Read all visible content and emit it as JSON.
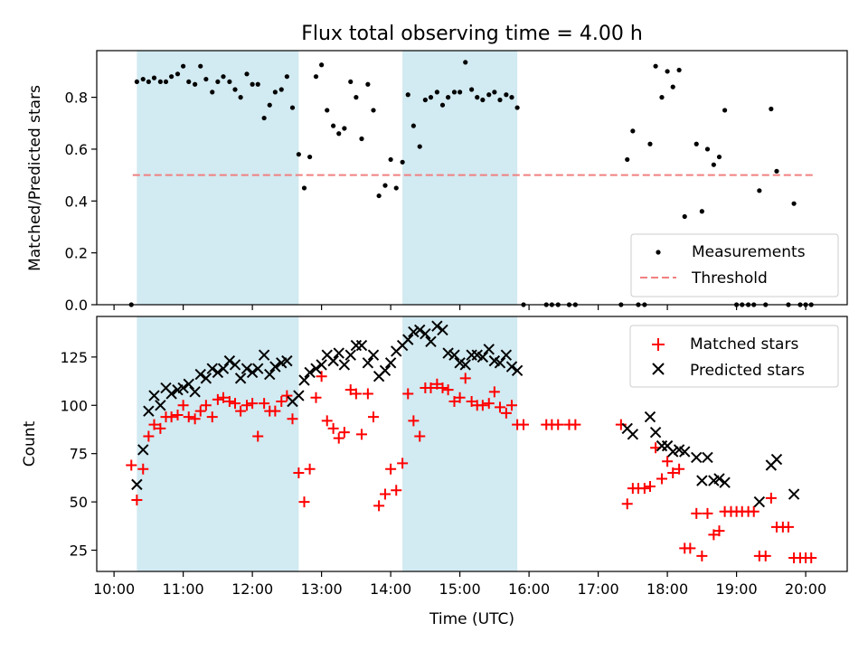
{
  "chart_data": {
    "title": "Flux total observing time = 4.00 h",
    "shared_x": {
      "label": "Time (UTC)",
      "unit": "hours UTC",
      "range": [
        9.75,
        20.6
      ],
      "ticks": [
        10,
        11,
        12,
        13,
        14,
        15,
        16,
        17,
        18,
        19,
        20
      ],
      "tick_labels": [
        "10:00",
        "11:00",
        "12:00",
        "13:00",
        "14:00",
        "15:00",
        "16:00",
        "17:00",
        "18:00",
        "19:00",
        "20:00"
      ]
    },
    "shaded_intervals": [
      [
        10.33,
        12.67
      ],
      [
        14.17,
        15.83
      ]
    ],
    "colors": {
      "shade": "#add8e6",
      "measurements": "#000000",
      "threshold": "#f08080",
      "matched": "#ff0000",
      "predicted": "#000000"
    },
    "panels": [
      {
        "type": "scatter",
        "ylabel": "Matched/Predicted stars",
        "ylim": [
          0,
          0.98
        ],
        "yticks": [
          0.0,
          0.2,
          0.4,
          0.6,
          0.8
        ],
        "ytick_labels": [
          "0.0",
          "0.2",
          "0.4",
          "0.6",
          "0.8"
        ],
        "legend_position": "lower-right",
        "threshold": {
          "name": "Threshold",
          "y": 0.5,
          "x_range": [
            10.27,
            20.1
          ]
        },
        "series": [
          {
            "name": "Measurements",
            "marker": "dot",
            "x": [
              10.25,
              10.33,
              10.42,
              10.5,
              10.58,
              10.67,
              10.75,
              10.83,
              10.92,
              11.0,
              11.08,
              11.17,
              11.25,
              11.33,
              11.42,
              11.5,
              11.58,
              11.67,
              11.75,
              11.83,
              11.92,
              12.0,
              12.08,
              12.17,
              12.25,
              12.33,
              12.42,
              12.5,
              12.58,
              12.67,
              12.75,
              12.83,
              12.92,
              13.0,
              13.08,
              13.17,
              13.25,
              13.33,
              13.42,
              13.5,
              13.58,
              13.67,
              13.75,
              13.83,
              13.92,
              14.0,
              14.08,
              14.17,
              14.25,
              14.33,
              14.42,
              14.5,
              14.58,
              14.67,
              14.75,
              14.83,
              14.92,
              15.0,
              15.08,
              15.17,
              15.25,
              15.33,
              15.42,
              15.5,
              15.58,
              15.67,
              15.75,
              15.83,
              15.92,
              16.25,
              16.33,
              16.42,
              16.58,
              16.67,
              17.33,
              17.42,
              17.5,
              17.58,
              17.67,
              17.75,
              17.83,
              17.92,
              18.0,
              18.08,
              18.17,
              18.25,
              18.42,
              18.5,
              18.58,
              18.67,
              18.75,
              18.83,
              19.0,
              19.08,
              19.17,
              19.25,
              19.33,
              19.42,
              19.5,
              19.58,
              19.75,
              19.83,
              19.92,
              20.0,
              20.08
            ],
            "y": [
              0.0,
              0.86,
              0.87,
              0.86,
              0.875,
              0.86,
              0.86,
              0.88,
              0.89,
              0.92,
              0.86,
              0.85,
              0.92,
              0.87,
              0.82,
              0.86,
              0.88,
              0.86,
              0.83,
              0.8,
              0.89,
              0.85,
              0.85,
              0.72,
              0.77,
              0.82,
              0.83,
              0.88,
              0.76,
              0.58,
              0.45,
              0.57,
              0.88,
              0.925,
              0.75,
              0.69,
              0.66,
              0.68,
              0.86,
              0.8,
              0.64,
              0.85,
              0.75,
              0.42,
              0.46,
              0.56,
              0.45,
              0.55,
              0.81,
              0.69,
              0.61,
              0.79,
              0.8,
              0.82,
              0.77,
              0.8,
              0.82,
              0.82,
              0.935,
              0.83,
              0.8,
              0.79,
              0.81,
              0.82,
              0.79,
              0.81,
              0.8,
              0.76,
              0.0,
              0.0,
              0.0,
              0.0,
              0.0,
              0.0,
              0.0,
              0.56,
              0.67,
              0.0,
              0.0,
              0.62,
              0.92,
              0.8,
              0.9,
              0.84,
              0.905,
              0.34,
              0.62,
              0.36,
              0.6,
              0.54,
              0.57,
              0.75,
              0.0,
              0.0,
              0.0,
              0.0,
              0.44,
              0.0,
              0.755,
              0.515,
              0.0,
              0.39,
              0.0,
              0.0,
              0.0
            ]
          }
        ]
      },
      {
        "type": "scatter",
        "ylabel": "Count",
        "ylim": [
          14,
          146
        ],
        "yticks": [
          25,
          50,
          75,
          100,
          125
        ],
        "ytick_labels": [
          "25",
          "50",
          "75",
          "100",
          "125"
        ],
        "legend_position": "upper-right",
        "series": [
          {
            "name": "Matched stars",
            "marker": "plus",
            "x": [
              10.25,
              10.33,
              10.42,
              10.5,
              10.58,
              10.67,
              10.75,
              10.83,
              10.92,
              11.0,
              11.08,
              11.17,
              11.25,
              11.33,
              11.42,
              11.5,
              11.58,
              11.67,
              11.75,
              11.83,
              11.92,
              12.0,
              12.08,
              12.17,
              12.25,
              12.33,
              12.42,
              12.5,
              12.58,
              12.67,
              12.75,
              12.83,
              12.92,
              13.0,
              13.08,
              13.17,
              13.25,
              13.33,
              13.42,
              13.5,
              13.58,
              13.67,
              13.75,
              13.83,
              13.92,
              14.0,
              14.08,
              14.17,
              14.25,
              14.33,
              14.42,
              14.5,
              14.58,
              14.67,
              14.75,
              14.83,
              14.92,
              15.0,
              15.08,
              15.17,
              15.25,
              15.33,
              15.42,
              15.5,
              15.58,
              15.67,
              15.75,
              15.83,
              15.92,
              16.25,
              16.33,
              16.42,
              16.58,
              16.67,
              17.33,
              17.42,
              17.5,
              17.58,
              17.67,
              17.75,
              17.83,
              17.92,
              18.0,
              18.08,
              18.17,
              18.25,
              18.33,
              18.42,
              18.5,
              18.58,
              18.67,
              18.75,
              18.83,
              18.92,
              19.0,
              19.08,
              19.17,
              19.25,
              19.33,
              19.42,
              19.5,
              19.58,
              19.67,
              19.75,
              19.83,
              19.92,
              20.0,
              20.08
            ],
            "y": [
              69,
              51,
              67,
              84,
              90,
              88,
              94,
              94,
              95,
              100,
              94,
              93,
              97,
              100,
              94,
              103,
              104,
              102,
              101,
              97,
              100,
              101,
              84,
              101,
              97,
              97,
              102,
              105,
              93,
              65,
              50,
              67,
              104,
              115,
              92,
              88,
              83,
              86,
              108,
              106,
              85,
              106,
              94,
              48,
              54,
              67,
              56,
              70,
              106,
              92,
              84,
              109,
              109,
              111,
              109,
              108,
              102,
              104,
              114,
              102,
              100,
              100,
              101,
              107,
              99,
              96,
              100,
              90,
              90,
              90,
              90,
              90,
              90,
              90,
              90,
              49,
              57,
              57,
              57,
              58,
              78,
              62,
              71,
              65,
              67,
              26,
              26,
              44,
              22,
              44,
              33,
              35,
              45,
              45,
              45,
              45,
              45,
              45,
              22,
              22,
              52,
              37,
              37,
              37,
              21,
              21,
              21,
              21
            ]
          },
          {
            "name": "Predicted stars",
            "marker": "x",
            "x": [
              10.33,
              10.42,
              10.5,
              10.58,
              10.67,
              10.75,
              10.83,
              10.92,
              11.0,
              11.08,
              11.17,
              11.25,
              11.33,
              11.42,
              11.5,
              11.58,
              11.67,
              11.75,
              11.83,
              11.92,
              12.0,
              12.08,
              12.17,
              12.25,
              12.33,
              12.42,
              12.5,
              12.58,
              12.67,
              12.75,
              12.83,
              12.92,
              13.0,
              13.08,
              13.17,
              13.25,
              13.33,
              13.42,
              13.5,
              13.58,
              13.67,
              13.75,
              13.83,
              13.92,
              14.0,
              14.08,
              14.17,
              14.25,
              14.33,
              14.42,
              14.5,
              14.58,
              14.67,
              14.75,
              14.83,
              14.92,
              15.0,
              15.08,
              15.17,
              15.25,
              15.33,
              15.42,
              15.5,
              15.58,
              15.67,
              15.75,
              15.83,
              17.42,
              17.5,
              17.75,
              17.83,
              17.92,
              18.0,
              18.08,
              18.17,
              18.25,
              18.42,
              18.5,
              18.58,
              18.67,
              18.75,
              18.83,
              19.33,
              19.5,
              19.58,
              19.83
            ],
            "y": [
              59,
              77,
              97,
              105,
              100,
              109,
              106,
              108,
              109,
              111,
              107,
              116,
              114,
              119,
              117,
              119,
              123,
              121,
              114,
              119,
              117,
              119,
              126,
              116,
              120,
              122,
              123,
              102,
              105,
              113,
              117,
              119,
              121,
              126,
              123,
              127,
              121,
              126,
              131,
              131,
              122,
              126,
              115,
              118,
              122,
              128,
              131,
              134,
              138,
              139,
              137,
              133,
              141,
              139,
              127,
              126,
              122,
              121,
              126,
              126,
              125,
              129,
              123,
              122,
              126,
              120,
              118,
              88,
              85,
              94,
              86,
              79,
              79,
              76,
              77,
              76,
              73,
              61,
              73,
              61,
              62,
              60,
              50,
              69,
              72,
              54
            ]
          }
        ]
      }
    ]
  }
}
